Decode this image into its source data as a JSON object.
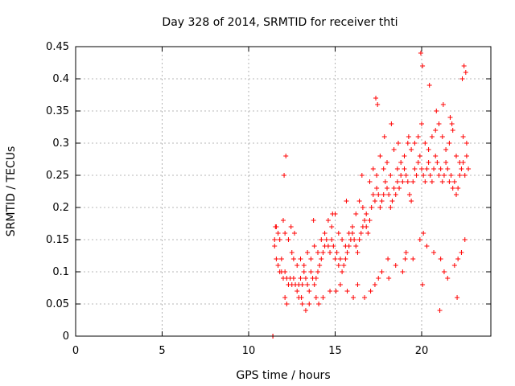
{
  "chart_data": {
    "type": "scatter",
    "title": "Day 328 of 2014, SRMTID for receiver thti",
    "xlabel": "GPS time / hours",
    "ylabel": "SRMTID / TECUs",
    "xlim": [
      0,
      24
    ],
    "ylim": [
      0,
      0.45
    ],
    "x_ticks": [
      0,
      5,
      10,
      15,
      20
    ],
    "y_ticks": [
      0,
      0.05,
      0.1,
      0.15,
      0.2,
      0.25,
      0.3,
      0.35,
      0.4,
      0.45
    ],
    "x_tick_labels": [
      "0",
      "5",
      "10",
      "15",
      "20"
    ],
    "y_tick_labels": [
      "0",
      "0.05",
      "0.1",
      "0.15",
      "0.2",
      "0.25",
      "0.3",
      "0.35",
      "0.4",
      "0.45"
    ],
    "grid": true,
    "marker": "plus",
    "color": "#ff0000",
    "series": [
      {
        "x": [
          11.4,
          11.4,
          11.5,
          11.5,
          11.6,
          11.7,
          11.8,
          11.9,
          11.9,
          12.0,
          12.1,
          12.2,
          12.3,
          12.4,
          12.5,
          12.6,
          12.7,
          12.8,
          12.9,
          13.0,
          13.1,
          13.2,
          13.3,
          13.4,
          13.5,
          13.6,
          13.7,
          13.8,
          13.9,
          14.0,
          14.1,
          14.2,
          14.3,
          14.4,
          14.5,
          14.6,
          14.7,
          14.8,
          14.9,
          15.0,
          15.1,
          15.2,
          15.3,
          15.4,
          15.5,
          15.6,
          15.7,
          15.8,
          15.9,
          16.0,
          16.1,
          16.2,
          16.3,
          16.4,
          16.5,
          16.6,
          16.7,
          16.8,
          16.9,
          17.0,
          17.1,
          17.2,
          17.3,
          17.4,
          17.5,
          17.6,
          17.7,
          17.8,
          17.9,
          18.0,
          18.1,
          18.2,
          18.3,
          18.4,
          18.5,
          18.6,
          18.7,
          18.8,
          18.9,
          19.0,
          19.1,
          19.2,
          19.3,
          19.4,
          19.5,
          19.6,
          19.7,
          19.8,
          19.9,
          20.0,
          20.1,
          20.2,
          20.3,
          20.4,
          20.5,
          20.6,
          20.7,
          20.8,
          20.9,
          21.0,
          21.1,
          21.2,
          21.3,
          21.4,
          21.5,
          21.6,
          21.7,
          21.8,
          21.9,
          22.0,
          22.1,
          22.2,
          22.3,
          22.4,
          22.5,
          22.6,
          22.7,
          11.6,
          11.7,
          11.8,
          12.0,
          12.1,
          12.3,
          12.5,
          12.6,
          12.8,
          13.0,
          13.2,
          13.4,
          13.6,
          13.8,
          14.0,
          14.2,
          14.4,
          14.6,
          14.8,
          15.0,
          15.2,
          15.4,
          15.6,
          15.8,
          16.0,
          16.2,
          16.4,
          16.6,
          16.8,
          17.0,
          17.2,
          17.4,
          17.6,
          17.8,
          18.0,
          18.2,
          18.4,
          18.6,
          18.8,
          19.0,
          19.2,
          19.4,
          19.6,
          19.8,
          20.0,
          20.2,
          20.4,
          20.6,
          20.8,
          21.0,
          21.2,
          21.4,
          21.6,
          21.8,
          22.0,
          22.2,
          22.4,
          22.6,
          12.1,
          12.2,
          12.9,
          13.1,
          13.3,
          13.5,
          13.9,
          14.3,
          14.7,
          15.3,
          15.7,
          16.3,
          16.7,
          17.3,
          17.5,
          17.7,
          18.1,
          18.5,
          18.9,
          19.1,
          19.5,
          19.9,
          20.1,
          20.3,
          20.7,
          21.1,
          21.3,
          21.5,
          21.9,
          22.1,
          22.3,
          22.5,
          12.05,
          12.15,
          17.35,
          17.45,
          18.25,
          19.95,
          20.05,
          20.45,
          21.65,
          21.75,
          22.35,
          22.55,
          22.45,
          21.25,
          20.85,
          19.25,
          18.65,
          17.85,
          16.55,
          15.65,
          14.85,
          13.75,
          12.45,
          11.55,
          12.65,
          13.05,
          14.05,
          15.05,
          16.05,
          17.05,
          18.05,
          19.05,
          20.05,
          21.05,
          22.05
        ],
        "y": [
          0.0,
          0.0,
          0.14,
          0.15,
          0.12,
          0.11,
          0.1,
          0.12,
          0.1,
          0.09,
          0.1,
          0.09,
          0.08,
          0.09,
          0.08,
          0.09,
          0.08,
          0.07,
          0.08,
          0.09,
          0.08,
          0.1,
          0.09,
          0.08,
          0.07,
          0.1,
          0.09,
          0.08,
          0.09,
          0.1,
          0.11,
          0.12,
          0.13,
          0.14,
          0.15,
          0.14,
          0.13,
          0.15,
          0.14,
          0.12,
          0.13,
          0.11,
          0.12,
          0.1,
          0.11,
          0.12,
          0.13,
          0.14,
          0.15,
          0.16,
          0.15,
          0.14,
          0.13,
          0.15,
          0.16,
          0.17,
          0.18,
          0.17,
          0.16,
          0.18,
          0.2,
          0.22,
          0.21,
          0.23,
          0.22,
          0.2,
          0.21,
          0.22,
          0.24,
          0.23,
          0.22,
          0.2,
          0.21,
          0.23,
          0.22,
          0.24,
          0.23,
          0.25,
          0.24,
          0.26,
          0.25,
          0.24,
          0.22,
          0.21,
          0.24,
          0.26,
          0.25,
          0.27,
          0.28,
          0.26,
          0.25,
          0.24,
          0.26,
          0.27,
          0.25,
          0.24,
          0.26,
          0.28,
          0.27,
          0.25,
          0.26,
          0.24,
          0.25,
          0.27,
          0.26,
          0.24,
          0.25,
          0.23,
          0.24,
          0.22,
          0.23,
          0.25,
          0.26,
          0.27,
          0.25,
          0.28,
          0.26,
          0.17,
          0.16,
          0.15,
          0.18,
          0.16,
          0.15,
          0.13,
          0.12,
          0.11,
          0.12,
          0.11,
          0.13,
          0.12,
          0.14,
          0.13,
          0.15,
          0.16,
          0.18,
          0.17,
          0.19,
          0.16,
          0.15,
          0.14,
          0.16,
          0.17,
          0.19,
          0.21,
          0.2,
          0.19,
          0.24,
          0.26,
          0.25,
          0.28,
          0.26,
          0.27,
          0.25,
          0.29,
          0.26,
          0.27,
          0.28,
          0.3,
          0.29,
          0.3,
          0.31,
          0.33,
          0.3,
          0.29,
          0.31,
          0.32,
          0.33,
          0.31,
          0.29,
          0.3,
          0.32,
          0.28,
          0.27,
          0.31,
          0.3,
          0.06,
          0.05,
          0.06,
          0.05,
          0.04,
          0.05,
          0.06,
          0.06,
          0.07,
          0.08,
          0.07,
          0.08,
          0.06,
          0.08,
          0.09,
          0.1,
          0.09,
          0.11,
          0.1,
          0.13,
          0.12,
          0.15,
          0.16,
          0.14,
          0.13,
          0.12,
          0.1,
          0.09,
          0.11,
          0.12,
          0.13,
          0.15,
          0.25,
          0.28,
          0.37,
          0.36,
          0.33,
          0.44,
          0.42,
          0.39,
          0.34,
          0.33,
          0.4,
          0.41,
          0.42,
          0.36,
          0.35,
          0.31,
          0.3,
          0.31,
          0.25,
          0.21,
          0.19,
          0.18,
          0.17,
          0.17,
          0.16,
          0.06,
          0.05,
          0.07,
          0.06,
          0.07,
          0.12,
          0.12,
          0.08,
          0.04,
          0.06
        ]
      }
    ]
  }
}
